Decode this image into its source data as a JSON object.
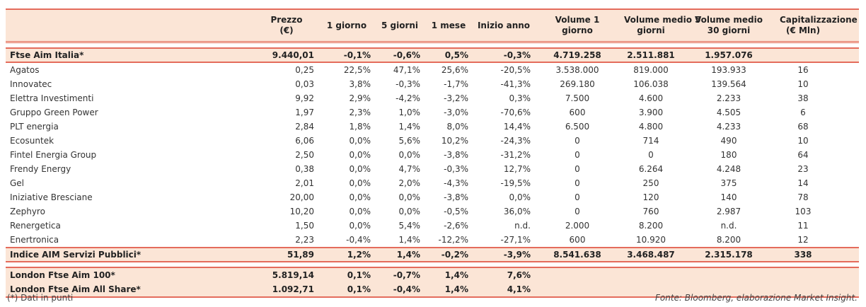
{
  "headers": [
    "",
    "Prezzo\n(€)",
    "1 giorno",
    "5 giorni",
    "1 mese",
    "Inizio anno",
    "Volume 1\ngiorno",
    "Volume medio 5\ngiorni",
    "Volume medio\n30 giorni",
    "Capitalizzazione\n(€ Mln)",
    ""
  ],
  "index_top": [
    "Ftse Aim Italia*",
    "9.440,01",
    "-0,1%",
    "-0,6%",
    "0,5%",
    "-0,3%",
    "4.719.258",
    "2.511.881",
    "1.957.076",
    ""
  ],
  "rows": [
    [
      "Agatos",
      "0,25",
      "22,5%",
      "47,1%",
      "25,6%",
      "-20,5%",
      "3.538.000",
      "819.000",
      "193.933",
      "16"
    ],
    [
      "Innovatec",
      "0,03",
      "3,8%",
      "-0,3%",
      "-1,7%",
      "-41,3%",
      "269.180",
      "106.038",
      "139.564",
      "10"
    ],
    [
      "Elettra Investimenti",
      "9,92",
      "2,9%",
      "-4,2%",
      "-3,2%",
      "0,3%",
      "7.500",
      "4.600",
      "2.233",
      "38"
    ],
    [
      "Gruppo Green Power",
      "1,97",
      "2,3%",
      "1,0%",
      "-3,0%",
      "-70,6%",
      "600",
      "3.900",
      "4.505",
      "6"
    ],
    [
      "PLT energia",
      "2,84",
      "1,8%",
      "1,4%",
      "8,0%",
      "14,4%",
      "6.500",
      "4.800",
      "4.233",
      "68"
    ],
    [
      "Ecosuntek",
      "6,06",
      "0,0%",
      "5,6%",
      "10,2%",
      "-24,3%",
      "0",
      "714",
      "490",
      "10"
    ],
    [
      "Fintel Energia Group",
      "2,50",
      "0,0%",
      "0,0%",
      "-3,8%",
      "-31,2%",
      "0",
      "0",
      "180",
      "64"
    ],
    [
      "Frendy Energy",
      "0,38",
      "0,0%",
      "4,7%",
      "-0,3%",
      "12,7%",
      "0",
      "6.264",
      "4.248",
      "23"
    ],
    [
      "Gel",
      "2,01",
      "0,0%",
      "2,0%",
      "-4,3%",
      "-19,5%",
      "0",
      "250",
      "375",
      "14"
    ],
    [
      "Iniziative Bresciane",
      "20,00",
      "0,0%",
      "0,0%",
      "-3,8%",
      "0,0%",
      "0",
      "120",
      "140",
      "78"
    ],
    [
      "Zephyro",
      "10,20",
      "0,0%",
      "0,0%",
      "-0,5%",
      "36,0%",
      "0",
      "760",
      "2.987",
      "103"
    ],
    [
      "Renergetica",
      "1,50",
      "0,0%",
      "5,4%",
      "-2,6%",
      "n.d.",
      "2.000",
      "8.200",
      "n.d.",
      "11"
    ],
    [
      "Enertronica",
      "2,23",
      "-0,4%",
      "1,4%",
      "-12,2%",
      "-27,1%",
      "600",
      "10.920",
      "8.200",
      "12"
    ]
  ],
  "index_sector": [
    "Indice AIM Servizi Pubblici*",
    "51,89",
    "1,2%",
    "1,4%",
    "-0,2%",
    "-3,9%",
    "8.541.638",
    "3.468.487",
    "2.315.178",
    "338"
  ],
  "london": [
    [
      "London Ftse Aim 100*",
      "5.819,14",
      "0,1%",
      "-0,7%",
      "1,4%",
      "7,6%",
      "",
      "",
      "",
      ""
    ],
    [
      "London Ftse Aim All Share*",
      "1.092,71",
      "0,1%",
      "-0,4%",
      "1,4%",
      "4,1%",
      "",
      "",
      "",
      ""
    ]
  ],
  "footnote": "(*) Dati in punti",
  "source": "Fonte: Bloomberg, elaborazione Market Insight."
}
